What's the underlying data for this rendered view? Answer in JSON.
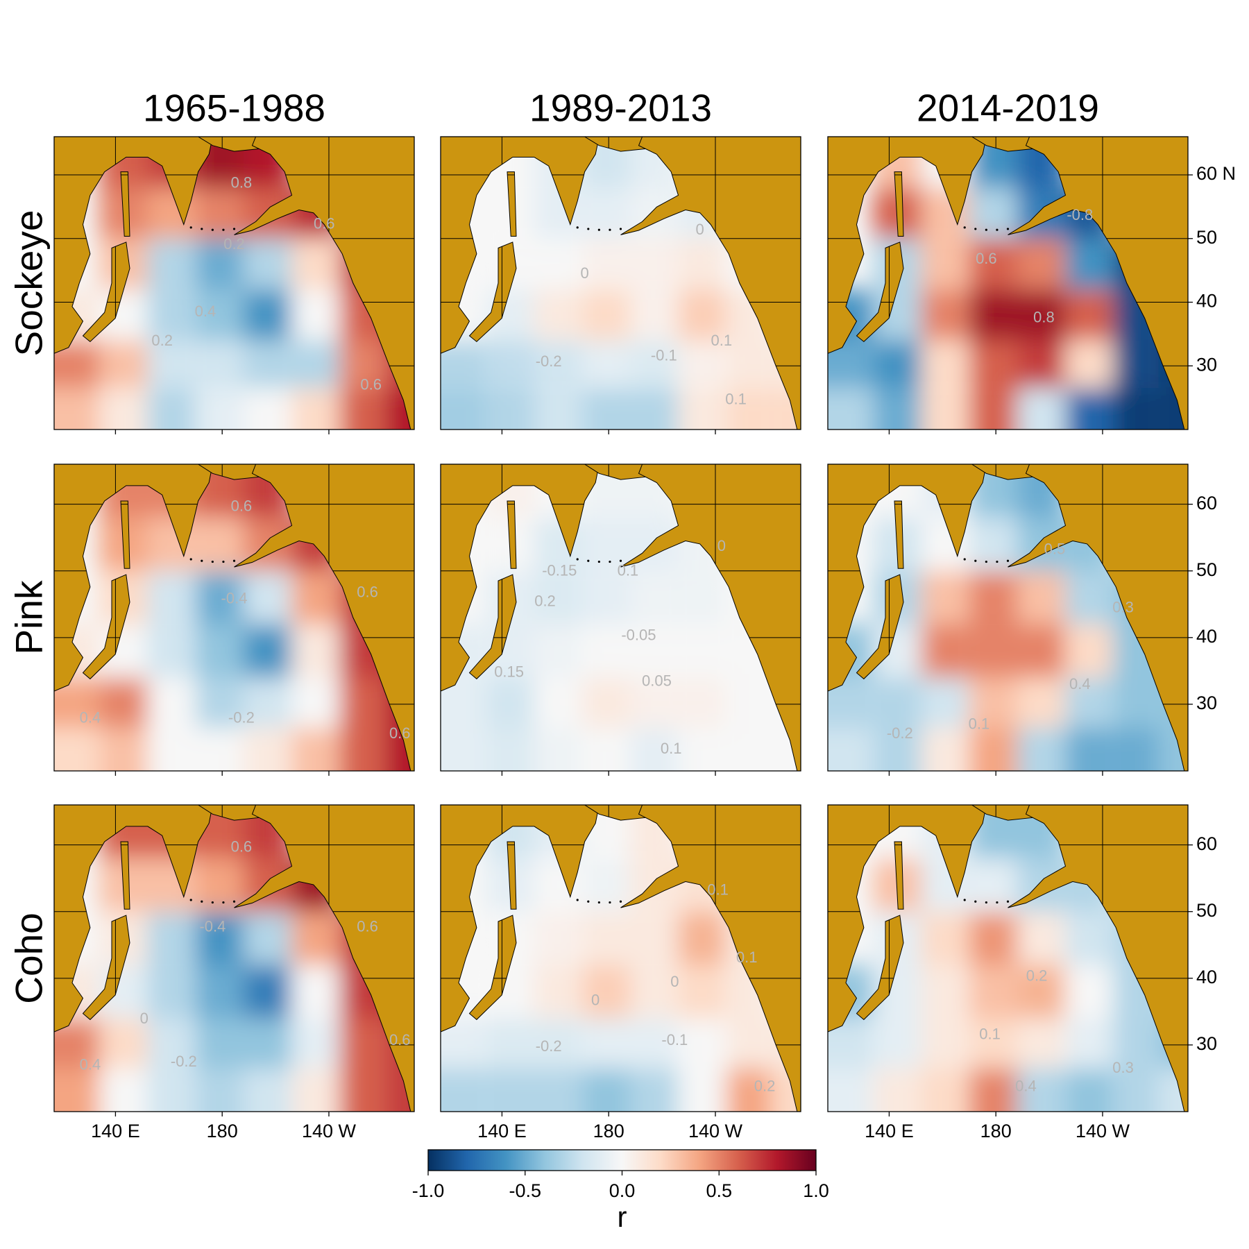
{
  "columns": [
    "1965-1988",
    "1989-2013",
    "2014-2019"
  ],
  "rows": [
    {
      "label": "Sockeye",
      "yticks": [
        {
          "value": 60,
          "label": "60 N"
        },
        50,
        40,
        30
      ]
    },
    {
      "label": "Pink",
      "yticks": [
        60,
        50,
        40,
        30
      ]
    },
    {
      "label": "Coho",
      "yticks": [
        60,
        50,
        40,
        30
      ]
    }
  ],
  "xlim": [
    117,
    252
  ],
  "ylim": [
    20,
    66
  ],
  "xticks": [
    {
      "value": 140,
      "label": "140 E"
    },
    180,
    {
      "value": 220,
      "label": "140 W"
    }
  ],
  "land_color": "#cc9510",
  "grid_lons": [
    125,
    143,
    161,
    179,
    197,
    215,
    233,
    249
  ],
  "grid_lats": [
    62,
    54,
    46,
    38,
    30,
    23
  ],
  "panels": [
    [
      {
        "r": [
          [
            null,
            0.6,
            0.7,
            0.85,
            0.8,
            null,
            null,
            null
          ],
          [
            null,
            0.5,
            0.4,
            0.5,
            0.6,
            0.75,
            null,
            null
          ],
          [
            null,
            0.3,
            -0.3,
            -0.5,
            -0.3,
            0.2,
            0.7,
            null
          ],
          [
            0.1,
            0.0,
            -0.3,
            -0.4,
            -0.6,
            0.0,
            0.6,
            0.7
          ],
          [
            0.5,
            0.3,
            -0.2,
            -0.2,
            -0.3,
            -0.3,
            0.5,
            0.7
          ],
          [
            0.3,
            0.1,
            -0.3,
            -0.1,
            0.0,
            0.2,
            0.6,
            0.8
          ]
        ],
        "contour_labels": [
          "0.8",
          "0.6",
          "0.2",
          "0.4",
          "0.2",
          "0.6"
        ]
      },
      {
        "r": [
          [
            null,
            0.0,
            -0.1,
            -0.2,
            -0.1,
            null,
            null,
            null
          ],
          [
            null,
            0.0,
            -0.1,
            -0.1,
            -0.05,
            -0.1,
            null,
            null
          ],
          [
            null,
            0.0,
            0.0,
            0.05,
            0.05,
            0.1,
            0.0,
            null
          ],
          [
            0.0,
            -0.1,
            0.1,
            0.2,
            0.05,
            0.25,
            0.1,
            0.0
          ],
          [
            -0.3,
            -0.25,
            -0.2,
            -0.1,
            -0.15,
            0.05,
            0.1,
            0.1
          ],
          [
            -0.35,
            -0.3,
            -0.2,
            -0.3,
            -0.3,
            0.1,
            0.2,
            0.2
          ]
        ],
        "contour_labels": [
          "0",
          "0",
          "0.1",
          "-0.1",
          "-0.2",
          "0.1"
        ]
      },
      {
        "r": [
          [
            null,
            0.3,
            0.0,
            -0.6,
            -0.8,
            null,
            null,
            null
          ],
          [
            null,
            0.6,
            0.3,
            -0.3,
            -0.7,
            -0.85,
            null,
            null
          ],
          [
            null,
            -0.3,
            0.3,
            0.6,
            0.5,
            -0.6,
            -0.9,
            null
          ],
          [
            -0.6,
            -0.3,
            0.5,
            0.85,
            0.85,
            0.6,
            -0.9,
            -0.9
          ],
          [
            -0.5,
            -0.6,
            0.2,
            0.6,
            0.7,
            0.2,
            -0.9,
            -0.95
          ],
          [
            -0.3,
            -0.5,
            0.2,
            0.6,
            -0.2,
            -0.8,
            -0.95,
            -0.95
          ]
        ],
        "contour_labels": [
          "-0.8",
          "0.6",
          "0.8"
        ]
      }
    ],
    [
      {
        "r": [
          [
            null,
            0.5,
            0.5,
            0.6,
            0.7,
            null,
            null,
            null
          ],
          [
            null,
            0.4,
            0.3,
            0.3,
            0.5,
            0.7,
            null,
            null
          ],
          [
            null,
            0.2,
            -0.2,
            -0.5,
            -0.2,
            0.4,
            0.7,
            null
          ],
          [
            0.1,
            0.0,
            -0.2,
            -0.4,
            -0.6,
            0.1,
            0.7,
            0.8
          ],
          [
            0.4,
            0.5,
            0.0,
            -0.3,
            -0.2,
            0.0,
            0.6,
            0.8
          ],
          [
            0.2,
            0.3,
            0.0,
            0.0,
            0.1,
            0.3,
            0.6,
            0.8
          ]
        ],
        "contour_labels": [
          "0.6",
          "-0.4",
          "0.4",
          "-0.2",
          "0.6",
          "0.6"
        ]
      },
      {
        "r": [
          [
            null,
            0.05,
            0.0,
            -0.05,
            -0.05,
            null,
            null,
            null
          ],
          [
            null,
            0.0,
            -0.15,
            -0.1,
            -0.1,
            -0.05,
            null,
            null
          ],
          [
            null,
            -0.1,
            -0.15,
            -0.1,
            -0.05,
            -0.05,
            0.0,
            null
          ],
          [
            -0.1,
            -0.1,
            -0.05,
            0.0,
            0.0,
            0.0,
            0.0,
            0.0
          ],
          [
            -0.1,
            -0.2,
            0.0,
            0.1,
            0.05,
            0.05,
            0.0,
            0.0
          ],
          [
            -0.1,
            -0.15,
            -0.05,
            0.0,
            -0.1,
            0.0,
            0.0,
            0.0
          ]
        ],
        "contour_labels": [
          "0",
          "0.1",
          "-0.15",
          "0.2",
          "-0.05",
          "0.15",
          "0.05",
          "0.1"
        ]
      },
      {
        "r": [
          [
            null,
            0.0,
            -0.1,
            -0.4,
            -0.5,
            null,
            null,
            null
          ],
          [
            null,
            -0.2,
            0.0,
            -0.2,
            -0.4,
            -0.4,
            null,
            null
          ],
          [
            null,
            -0.3,
            0.3,
            0.5,
            0.3,
            -0.3,
            -0.4,
            null
          ],
          [
            -0.4,
            -0.1,
            0.5,
            0.5,
            0.5,
            0.2,
            -0.4,
            -0.4
          ],
          [
            -0.3,
            -0.3,
            -0.2,
            0.3,
            0.2,
            -0.3,
            -0.4,
            -0.4
          ],
          [
            -0.2,
            -0.3,
            0.1,
            0.4,
            -0.3,
            -0.5,
            -0.5,
            -0.4
          ]
        ],
        "contour_labels": [
          "0.5",
          "0.3",
          "0.4",
          "-0.2",
          "0.1"
        ]
      }
    ],
    [
      {
        "r": [
          [
            null,
            0.6,
            0.6,
            0.6,
            0.7,
            null,
            null,
            null
          ],
          [
            null,
            0.3,
            0.3,
            0.4,
            0.6,
            0.85,
            null,
            null
          ],
          [
            null,
            0.1,
            -0.3,
            -0.6,
            -0.3,
            0.4,
            0.7,
            null
          ],
          [
            0.1,
            -0.1,
            -0.3,
            -0.5,
            -0.7,
            0.0,
            0.7,
            0.8
          ],
          [
            0.5,
            0.2,
            -0.2,
            -0.4,
            -0.4,
            -0.1,
            0.6,
            0.7
          ],
          [
            0.4,
            0.0,
            -0.2,
            -0.3,
            -0.2,
            0.1,
            0.6,
            0.7
          ]
        ],
        "contour_labels": [
          "0.6",
          "-0.4",
          "0",
          "0.4",
          "-0.2",
          "0.6",
          "0.6"
        ]
      },
      {
        "r": [
          [
            null,
            -0.2,
            -0.1,
            0.0,
            0.1,
            null,
            null,
            null
          ],
          [
            null,
            -0.1,
            0.0,
            -0.05,
            0.1,
            0.15,
            null,
            null
          ],
          [
            null,
            0.0,
            0.05,
            0.1,
            0.1,
            0.35,
            0.1,
            null
          ],
          [
            0.0,
            0.0,
            0.1,
            0.25,
            0.1,
            0.2,
            0.1,
            0.0
          ],
          [
            -0.1,
            -0.15,
            -0.15,
            -0.1,
            -0.1,
            0.0,
            0.1,
            0.1
          ],
          [
            -0.3,
            -0.3,
            -0.3,
            -0.4,
            -0.3,
            0.0,
            0.4,
            0.2
          ]
        ],
        "contour_labels": [
          "0.1",
          "0",
          "0.1",
          "0",
          "-0.1",
          "-0.2",
          "0.2"
        ]
      },
      {
        "r": [
          [
            null,
            0.0,
            -0.1,
            -0.4,
            -0.4,
            null,
            null,
            null
          ],
          [
            null,
            0.3,
            -0.1,
            -0.1,
            -0.3,
            -0.3,
            null,
            null
          ],
          [
            null,
            -0.1,
            0.2,
            0.45,
            0.1,
            -0.2,
            -0.3,
            null
          ],
          [
            -0.4,
            -0.1,
            0.1,
            0.3,
            0.35,
            0.0,
            -0.3,
            -0.3
          ],
          [
            -0.2,
            -0.1,
            0.1,
            0.2,
            0.1,
            -0.1,
            -0.3,
            -0.4
          ],
          [
            -0.1,
            0.1,
            0.2,
            0.5,
            -0.3,
            -0.4,
            -0.3,
            -0.2
          ]
        ],
        "contour_labels": [
          "0.2",
          "0.1",
          "0.3",
          "0.4"
        ]
      }
    ]
  ],
  "colorbar": {
    "label": "r",
    "lim": [
      -1,
      1
    ],
    "ticks": [
      {
        "value": -1,
        "label": "-1.0"
      },
      -0.5,
      {
        "value": 0,
        "label": "0.0"
      },
      0.5,
      {
        "value": 1,
        "label": "1.0"
      }
    ],
    "colormap": [
      "#053061",
      "#2166ac",
      "#4393c3",
      "#92c5de",
      "#d1e5f0",
      "#f7f7f7",
      "#fddbc7",
      "#f4a582",
      "#d6604d",
      "#b2182b",
      "#67001f"
    ]
  }
}
